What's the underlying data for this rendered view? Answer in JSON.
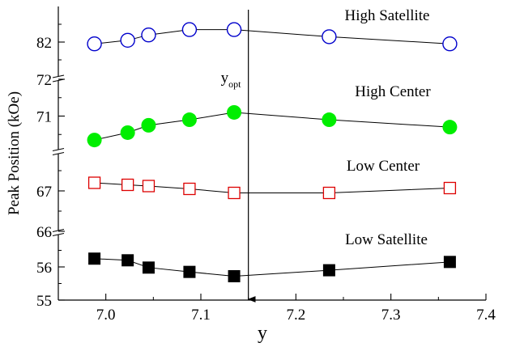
{
  "chart_data": {
    "type": "scatter",
    "xlabel": "y",
    "ylabel": "Peak Position (kOe)",
    "xlim": [
      6.95,
      7.4
    ],
    "x_ticks": [
      7.0,
      7.1,
      7.2,
      7.3,
      7.4
    ],
    "x_tick_labels": [
      "7.0",
      "7.1",
      "7.2",
      "7.3",
      "7.4"
    ],
    "grid": false,
    "legend": "none",
    "broken_y_axis": true,
    "panels": [
      {
        "id": "low-satellite",
        "ylim": [
          55,
          57
        ],
        "ticks": [
          55,
          56
        ],
        "tick_labels": [
          "55",
          "56"
        ]
      },
      {
        "id": "low-center",
        "ylim": [
          66,
          68
        ],
        "ticks": [
          66,
          67
        ],
        "tick_labels": [
          "66",
          "67"
        ]
      },
      {
        "id": "high-center",
        "ylim": [
          70,
          72
        ],
        "ticks": [
          71,
          72
        ],
        "tick_labels": [
          "71",
          "72"
        ]
      },
      {
        "id": "high-satellite",
        "ylim": [
          81,
          83
        ],
        "ticks": [
          82
        ],
        "tick_labels": [
          "82"
        ]
      }
    ],
    "series": [
      {
        "name": "High Satellite",
        "panel": "high-satellite",
        "marker": "circle-open",
        "color": "#0000cc",
        "x": [
          6.988,
          7.023,
          7.045,
          7.088,
          7.135,
          7.235,
          7.362
        ],
        "y": [
          81.95,
          82.05,
          82.2,
          82.35,
          82.35,
          82.15,
          81.95
        ]
      },
      {
        "name": "High Center",
        "panel": "high-center",
        "marker": "circle-filled",
        "color": "#00ee00",
        "x": [
          6.988,
          7.023,
          7.045,
          7.088,
          7.135,
          7.235,
          7.362
        ],
        "y": [
          70.35,
          70.55,
          70.75,
          70.9,
          71.1,
          70.9,
          70.7
        ]
      },
      {
        "name": "Low Center",
        "panel": "low-center",
        "marker": "square-open",
        "color": "#dd0000",
        "x": [
          6.988,
          7.023,
          7.045,
          7.088,
          7.135,
          7.235,
          7.362
        ],
        "y": [
          67.2,
          67.15,
          67.12,
          67.05,
          66.95,
          66.95,
          67.07
        ]
      },
      {
        "name": "Low Satellite",
        "panel": "low-satellite",
        "marker": "square-filled",
        "color": "#000000",
        "x": [
          6.988,
          7.023,
          7.045,
          7.088,
          7.135,
          7.235,
          7.362
        ],
        "y": [
          56.25,
          56.2,
          55.98,
          55.85,
          55.72,
          55.9,
          56.15
        ]
      }
    ],
    "annotations": {
      "vline_x": 7.15,
      "vline_label_main": "y",
      "vline_label_sub": "opt",
      "series_labels": [
        "High Satellite",
        "High Center",
        "Low Center",
        "Low Satellite"
      ]
    }
  }
}
